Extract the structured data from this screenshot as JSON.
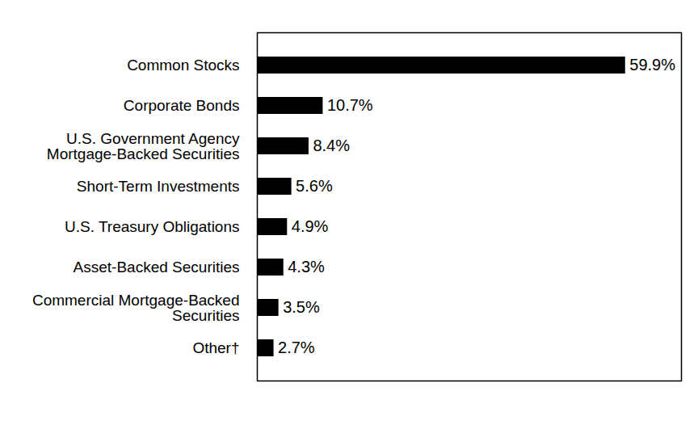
{
  "chart_data": {
    "type": "bar",
    "orientation": "horizontal",
    "categories": [
      "Common Stocks",
      "Corporate Bonds",
      "U.S. Government Agency Mortgage-Backed Securities",
      "Short-Term Investments",
      "U.S. Treasury Obligations",
      "Asset-Backed Securities",
      "Commercial Mortgage-Backed Securities",
      "Other†"
    ],
    "values": [
      59.9,
      10.7,
      8.4,
      5.6,
      4.9,
      4.3,
      3.5,
      2.7
    ],
    "value_labels": [
      "59.9%",
      "10.7%",
      "8.4%",
      "5.6%",
      "4.9%",
      "4.3%",
      "3.5%",
      "2.7%"
    ],
    "color": "#000000",
    "xlim": [
      0,
      69
    ],
    "data_labels": true,
    "tick_labels": "y",
    "grid": false
  }
}
